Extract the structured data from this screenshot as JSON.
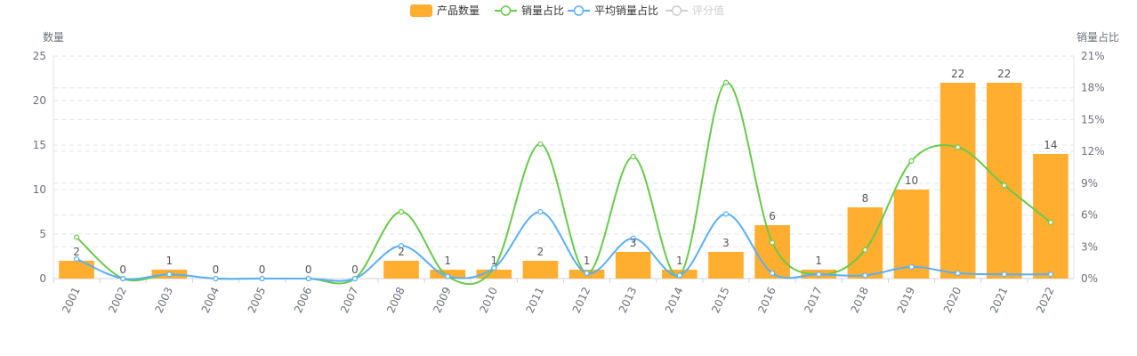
{
  "chart_data": {
    "type": "bar+line",
    "categories": [
      "2001",
      "2002",
      "2003",
      "2004",
      "2005",
      "2006",
      "2007",
      "2008",
      "2009",
      "2010",
      "2011",
      "2012",
      "2013",
      "2014",
      "2015",
      "2016",
      "2017",
      "2018",
      "2019",
      "2020",
      "2021",
      "2022"
    ],
    "legend": [
      {
        "name": "产品数量",
        "color": "#FFAE2F",
        "kind": "bar"
      },
      {
        "name": "销量占比",
        "color": "#67C94A",
        "kind": "line"
      },
      {
        "name": "平均销量占比",
        "color": "#5AAEF7",
        "kind": "line"
      },
      {
        "name": "评分值",
        "color": "#CCCCCC",
        "kind": "line",
        "disabled": true
      }
    ],
    "legend_position": "top-center",
    "left_axis": {
      "label": "数量",
      "min": 0,
      "max": 25,
      "ticks": [
        "0",
        "5",
        "10",
        "15",
        "20",
        "25"
      ]
    },
    "right_axis": {
      "label": "销量占比",
      "min": 0,
      "max": 21,
      "ticks": [
        "0%",
        "3%",
        "6%",
        "9%",
        "12%",
        "15%",
        "18%",
        "21%"
      ]
    },
    "series": [
      {
        "name": "产品数量",
        "axis": "left",
        "type": "bar",
        "color": "#FFAE2F",
        "values": [
          2,
          0,
          1,
          0,
          0,
          0,
          0,
          2,
          1,
          1,
          2,
          1,
          3,
          1,
          3,
          6,
          1,
          8,
          10,
          22,
          22,
          14
        ],
        "labels": [
          "2",
          "0",
          "1",
          "0",
          "0",
          "0",
          "0",
          "2",
          "1",
          "1",
          "2",
          "1",
          "3",
          "1",
          "3",
          "6",
          "1",
          "8",
          "10",
          "22",
          "22",
          "14"
        ]
      },
      {
        "name": "销量占比",
        "axis": "right",
        "type": "line",
        "color": "#67C94A",
        "values": [
          3.9,
          0,
          0.4,
          0,
          0,
          0,
          0,
          6.3,
          0.2,
          1.0,
          12.7,
          0.5,
          11.5,
          0.3,
          18.5,
          3.4,
          0.4,
          2.7,
          11.1,
          12.4,
          8.8,
          5.3
        ]
      },
      {
        "name": "平均销量占比",
        "axis": "right",
        "type": "line",
        "color": "#5AAEF7",
        "values": [
          1.85,
          0,
          0.4,
          0,
          0,
          0,
          0,
          3.1,
          0.2,
          1.0,
          6.3,
          0.5,
          3.8,
          0.3,
          6.1,
          0.5,
          0.4,
          0.3,
          1.1,
          0.5,
          0.4,
          0.4
        ]
      }
    ],
    "grid": true
  }
}
